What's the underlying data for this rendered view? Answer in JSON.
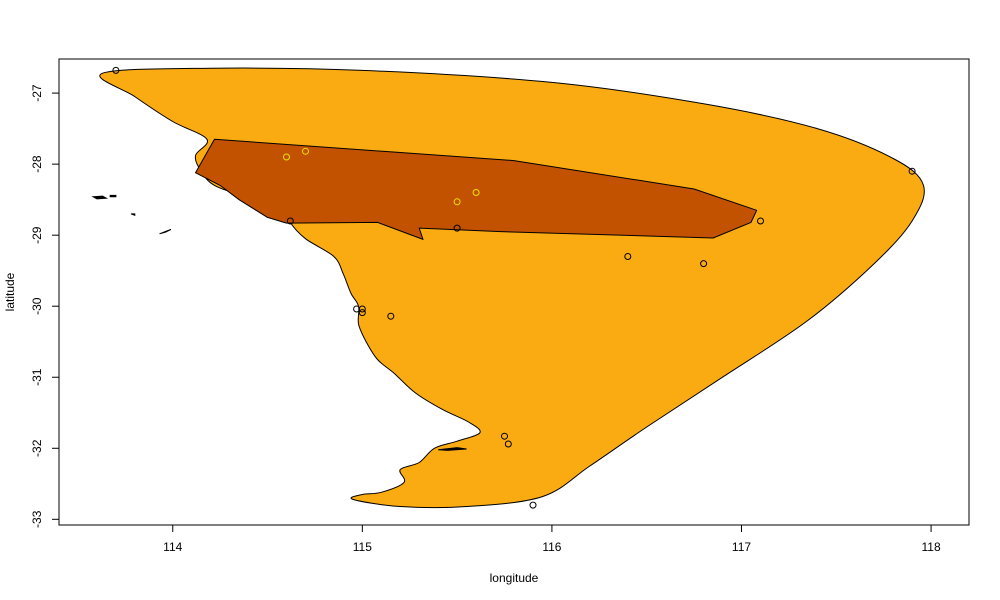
{
  "axes": {
    "xlabel": "longitude",
    "ylabel": "latitude",
    "xticks": [
      {
        "value": 114,
        "label": "114"
      },
      {
        "value": 115,
        "label": "115"
      },
      {
        "value": 116,
        "label": "116"
      },
      {
        "value": 117,
        "label": "117"
      },
      {
        "value": 118,
        "label": "118"
      }
    ],
    "yticks": [
      {
        "value": -27,
        "label": "-27"
      },
      {
        "value": -28,
        "label": "-28"
      },
      {
        "value": -29,
        "label": "-29"
      },
      {
        "value": -30,
        "label": "-30"
      },
      {
        "value": -31,
        "label": "-31"
      },
      {
        "value": -32,
        "label": "-32"
      },
      {
        "value": -33,
        "label": "-33"
      }
    ],
    "xlim": [
      113.4,
      118.2
    ],
    "ylim": [
      -33.08,
      -26.52
    ]
  },
  "colors": {
    "outer_fill": "#FBAB12",
    "inner_fill": "#C25100",
    "outline": "#000000",
    "point_dark": "#000000",
    "point_yellow": "#E6E600"
  },
  "chart_data": {
    "type": "scatter",
    "xlabel": "longitude",
    "ylabel": "latitude",
    "xlim": [
      113.4,
      118.2
    ],
    "ylim": [
      -33.08,
      -26.52
    ],
    "grid": false,
    "layers": [
      {
        "name": "outer-range",
        "kind": "polygon",
        "color": "#FBAB12",
        "points": [
          [
            113.63,
            -26.72
          ],
          [
            114.2,
            -26.65
          ],
          [
            115.0,
            -26.68
          ],
          [
            116.0,
            -26.85
          ],
          [
            116.8,
            -27.15
          ],
          [
            117.4,
            -27.5
          ],
          [
            117.8,
            -27.92
          ],
          [
            117.96,
            -28.3
          ],
          [
            117.9,
            -28.8
          ],
          [
            117.7,
            -29.4
          ],
          [
            117.35,
            -30.2
          ],
          [
            116.9,
            -31.0
          ],
          [
            116.5,
            -31.7
          ],
          [
            116.2,
            -32.25
          ],
          [
            115.95,
            -32.68
          ],
          [
            115.55,
            -32.82
          ],
          [
            115.2,
            -32.82
          ],
          [
            114.95,
            -32.72
          ],
          [
            115.0,
            -32.65
          ],
          [
            115.1,
            -32.62
          ],
          [
            115.22,
            -32.48
          ],
          [
            115.2,
            -32.3
          ],
          [
            115.3,
            -32.2
          ],
          [
            115.38,
            -32.0
          ],
          [
            115.5,
            -31.9
          ],
          [
            115.62,
            -31.78
          ],
          [
            115.56,
            -31.63
          ],
          [
            115.42,
            -31.45
          ],
          [
            115.28,
            -31.22
          ],
          [
            115.17,
            -30.95
          ],
          [
            115.08,
            -30.75
          ],
          [
            115.02,
            -30.5
          ],
          [
            114.98,
            -30.25
          ],
          [
            114.98,
            -30.0
          ],
          [
            114.94,
            -29.82
          ],
          [
            114.9,
            -29.55
          ],
          [
            114.85,
            -29.3
          ],
          [
            114.7,
            -29.05
          ],
          [
            114.62,
            -28.82
          ],
          [
            114.6,
            -28.63
          ],
          [
            114.38,
            -28.45
          ],
          [
            114.22,
            -28.3
          ],
          [
            114.15,
            -28.1
          ],
          [
            114.12,
            -27.88
          ],
          [
            114.18,
            -27.65
          ],
          [
            114.0,
            -27.4
          ],
          [
            113.8,
            -27.05
          ]
        ]
      },
      {
        "name": "inner-range",
        "kind": "polygon",
        "color": "#C25100",
        "points": [
          [
            114.22,
            -27.65
          ],
          [
            115.8,
            -27.95
          ],
          [
            116.75,
            -28.35
          ],
          [
            117.08,
            -28.65
          ],
          [
            117.05,
            -28.82
          ],
          [
            116.85,
            -29.04
          ],
          [
            115.73,
            -28.95
          ],
          [
            115.3,
            -28.9
          ],
          [
            115.32,
            -29.06
          ],
          [
            115.08,
            -28.82
          ],
          [
            114.6,
            -28.83
          ],
          [
            114.5,
            -28.75
          ],
          [
            114.35,
            -28.5
          ],
          [
            114.25,
            -28.3
          ],
          [
            114.12,
            -28.12
          ]
        ]
      },
      {
        "name": "islands",
        "kind": "islands",
        "color": "#000000",
        "shapes": [
          [
            [
              113.58,
              -28.46
            ],
            [
              113.63,
              -28.45
            ],
            [
              113.65,
              -28.48
            ],
            [
              113.6,
              -28.49
            ]
          ],
          [
            [
              113.67,
              -28.44
            ],
            [
              113.7,
              -28.44
            ],
            [
              113.7,
              -28.46
            ],
            [
              113.67,
              -28.46
            ]
          ],
          [
            [
              113.78,
              -28.7
            ],
            [
              113.8,
              -28.7
            ],
            [
              113.8,
              -28.72
            ]
          ],
          [
            [
              113.93,
              -28.98
            ],
            [
              113.97,
              -28.94
            ],
            [
              113.99,
              -28.92
            ],
            [
              113.96,
              -28.96
            ]
          ],
          [
            [
              115.4,
              -32.02
            ],
            [
              115.5,
              -31.99
            ],
            [
              115.55,
              -32.01
            ],
            [
              115.45,
              -32.03
            ]
          ]
        ]
      },
      {
        "name": "occurrence-points-dark",
        "kind": "points",
        "color": "#000000",
        "points": [
          [
            113.7,
            -26.68
          ],
          [
            114.62,
            -28.8
          ],
          [
            115.5,
            -28.9
          ],
          [
            117.9,
            -28.1
          ],
          [
            117.1,
            -28.8
          ],
          [
            116.4,
            -29.3
          ],
          [
            116.8,
            -29.4
          ],
          [
            114.97,
            -30.04
          ],
          [
            115.0,
            -30.04
          ],
          [
            115.15,
            -30.14
          ],
          [
            115.0,
            -30.09
          ],
          [
            115.75,
            -31.83
          ],
          [
            115.77,
            -31.94
          ],
          [
            115.9,
            -32.8
          ]
        ]
      },
      {
        "name": "occurrence-points-yellow",
        "kind": "points",
        "color": "#E6E600",
        "points": [
          [
            114.6,
            -27.9
          ],
          [
            114.7,
            -27.82
          ],
          [
            115.5,
            -28.53
          ],
          [
            115.6,
            -28.4
          ]
        ]
      }
    ]
  }
}
